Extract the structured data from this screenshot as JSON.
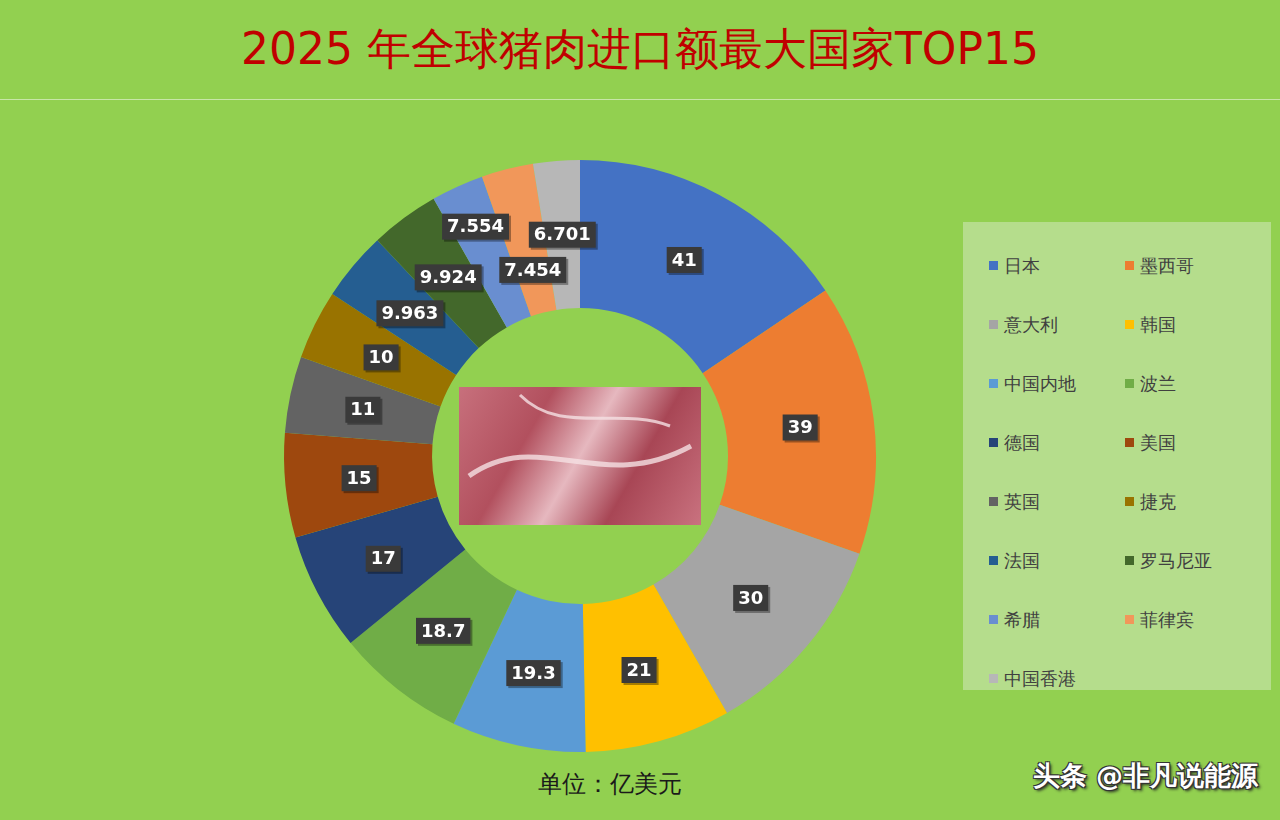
{
  "chart_data": {
    "type": "doughnut",
    "title": "2025 年全球猪肉进口额最大国家TOP15",
    "subtitle": "单位：亿美元",
    "annotations": [
      "头条 @非凡说能源"
    ],
    "categories": [
      "日本",
      "墨西哥",
      "意大利",
      "韩国",
      "中国内地",
      "波兰",
      "德国",
      "美国",
      "英国",
      "捷克",
      "法国",
      "罗马尼亚",
      "希腊",
      "菲律宾",
      "中国香港"
    ],
    "values": [
      41,
      39,
      30,
      21,
      19.3,
      18.7,
      17,
      15,
      11,
      10,
      9.963,
      9.924,
      7.554,
      7.454,
      6.701
    ],
    "colors": [
      "#4472c4",
      "#ed7d31",
      "#a5a5a5",
      "#ffc000",
      "#5b9bd5",
      "#70ad47",
      "#264478",
      "#9e480e",
      "#636363",
      "#997300",
      "#255e91",
      "#43682b",
      "#698ed0",
      "#f1975a",
      "#b7b7b7"
    ],
    "data_labels": true,
    "legend": "right"
  }
}
